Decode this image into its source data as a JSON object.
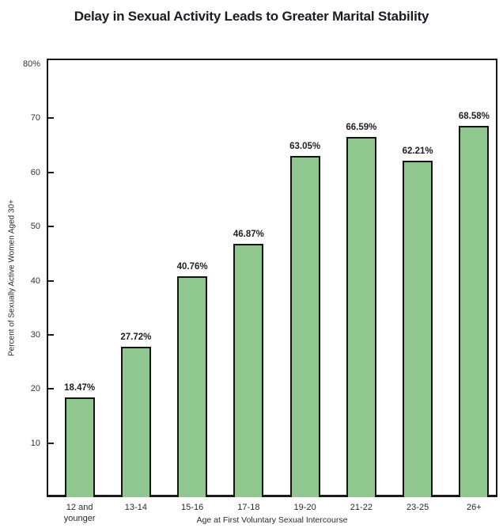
{
  "title": "Delay in Sexual Activity Leads to Greater Marital Stability",
  "colors": {
    "bar_fill": "#8fc78e",
    "bar_border": "#141414",
    "axis": "#1a1a1a",
    "tick_text": "#333333",
    "label_text": "#1f1f1f",
    "title_text": "#1b1b23"
  },
  "chart_data": {
    "type": "bar",
    "title": "Delay in Sexual Activity Leads to Greater Marital Stability",
    "categories": [
      "12 and younger",
      "13-14",
      "15-16",
      "17-18",
      "19-20",
      "21-22",
      "23-25",
      "26+"
    ],
    "values": [
      18.47,
      27.72,
      40.76,
      46.87,
      63.05,
      66.59,
      62.21,
      68.58
    ],
    "data_labels": [
      "18.47%",
      "27.72%",
      "40.76%",
      "46.87%",
      "63.05%",
      "66.59%",
      "62.21%",
      "68.58%"
    ],
    "xlabel": "Age at First Voluntary Sexual Intercourse",
    "ylabel": "Percent of Sexually Active Women Aged 30+",
    "ylim": [
      0,
      80
    ],
    "yticks": [
      10,
      20,
      30,
      40,
      50,
      60,
      70,
      80
    ],
    "ytick_labels": [
      "10",
      "20",
      "30",
      "40",
      "50",
      "60",
      "70",
      "80%"
    ],
    "grid": false,
    "legend": "none",
    "bar_orientation": "vertical"
  }
}
